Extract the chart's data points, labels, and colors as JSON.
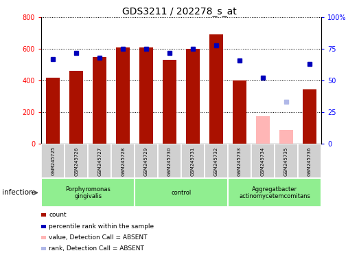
{
  "title": "GDS3211 / 202278_s_at",
  "samples": [
    "GSM245725",
    "GSM245726",
    "GSM245727",
    "GSM245728",
    "GSM245729",
    "GSM245730",
    "GSM245731",
    "GSM245732",
    "GSM245733",
    "GSM245734",
    "GSM245735",
    "GSM245736"
  ],
  "count_values": [
    420,
    460,
    550,
    610,
    610,
    530,
    600,
    690,
    400,
    175,
    90,
    345
  ],
  "count_absent": [
    false,
    false,
    false,
    false,
    false,
    false,
    false,
    false,
    false,
    true,
    true,
    false
  ],
  "rank_values": [
    67,
    72,
    68,
    75,
    75,
    72,
    75,
    78,
    66,
    52,
    33,
    63
  ],
  "rank_absent": [
    false,
    false,
    false,
    false,
    false,
    false,
    false,
    false,
    false,
    false,
    true,
    false
  ],
  "ylim_left": [
    0,
    800
  ],
  "ylim_right": [
    0,
    100
  ],
  "yticks_left": [
    0,
    200,
    400,
    600,
    800
  ],
  "yticks_right": [
    0,
    25,
    50,
    75,
    100
  ],
  "yticklabels_right": [
    "0",
    "25",
    "50",
    "75",
    "100%"
  ],
  "group_ranges": [
    [
      0,
      3
    ],
    [
      4,
      7
    ],
    [
      8,
      11
    ]
  ],
  "group_labels": [
    "Porphyromonas\ngingivalis",
    "control",
    "Aggregatbacter\nactinomycetemcomitans"
  ],
  "group_color": "#90EE90",
  "bar_color_present": "#aa1100",
  "bar_color_absent": "#ffb6b6",
  "dot_color_present": "#0000bb",
  "dot_color_absent": "#b0b8e8",
  "sample_box_color": "#d0d0d0",
  "infection_label": "infection",
  "legend_items": [
    {
      "label": "count",
      "color": "#aa1100",
      "type": "bar"
    },
    {
      "label": "percentile rank within the sample",
      "color": "#0000bb",
      "type": "dot"
    },
    {
      "label": "value, Detection Call = ABSENT",
      "color": "#ffb6b6",
      "type": "bar"
    },
    {
      "label": "rank, Detection Call = ABSENT",
      "color": "#b0b8e8",
      "type": "dot"
    }
  ]
}
